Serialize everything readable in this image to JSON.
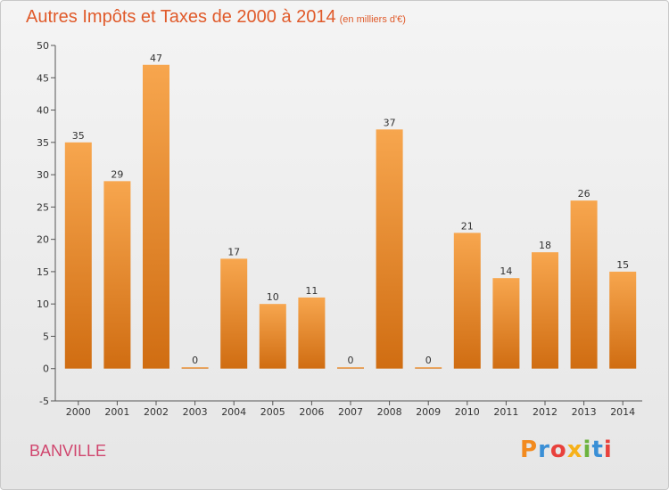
{
  "title": "Autres Impôts et Taxes de 2000 à 2014",
  "subtitle": "(en milliers d'€)",
  "commune": "BANVILLE",
  "logo": {
    "letters": [
      "P",
      "r",
      "o",
      "x",
      "i",
      "t",
      "i"
    ],
    "colors": [
      "#f28a1e",
      "#3a8fd6",
      "#e8413c",
      "#f6b11a",
      "#6cb33e",
      "#3a8fd6",
      "#e8413c"
    ]
  },
  "colors": {
    "bar_top": "#f7a64e",
    "bar_bottom": "#d06d12",
    "title": "#e05a2a",
    "commune": "#d0466e"
  },
  "chart_data": {
    "type": "bar",
    "title": "Autres Impôts et Taxes de 2000 à 2014",
    "subtitle": "(en milliers d'€)",
    "categories": [
      "2000",
      "2001",
      "2002",
      "2003",
      "2004",
      "2005",
      "2006",
      "2007",
      "2008",
      "2009",
      "2010",
      "2011",
      "2012",
      "2013",
      "2014"
    ],
    "values": [
      35,
      29,
      47,
      0,
      17,
      10,
      11,
      0,
      37,
      0,
      21,
      14,
      18,
      26,
      15
    ],
    "ylim": [
      -5,
      50
    ],
    "yticks": [
      -5,
      0,
      5,
      10,
      15,
      20,
      25,
      30,
      35,
      40,
      45,
      50
    ],
    "grid": false,
    "data_labels": true
  }
}
